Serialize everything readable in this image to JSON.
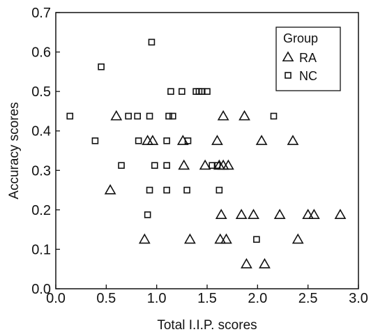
{
  "chart_data": {
    "type": "scatter",
    "xlabel": "Total I.I.P. scores",
    "ylabel": "Accuracy scores",
    "xlim": [
      0.0,
      3.0
    ],
    "ylim": [
      0.0,
      0.7
    ],
    "xticks": [
      "0.0",
      "0.5",
      "1.0",
      "1.5",
      "2.0",
      "2.5",
      "3.0"
    ],
    "yticks": [
      "0.0",
      "0.1",
      "0.2",
      "0.3",
      "0.4",
      "0.5",
      "0.6",
      "0.7"
    ],
    "grid": false,
    "legend": {
      "title": "Group",
      "placement": "top-right"
    },
    "series": [
      {
        "name": "RA",
        "marker": "triangle",
        "points": [
          [
            0.54,
            0.25
          ],
          [
            0.6,
            0.4375
          ],
          [
            0.88,
            0.125
          ],
          [
            0.91,
            0.375
          ],
          [
            0.96,
            0.375
          ],
          [
            1.26,
            0.375
          ],
          [
            1.27,
            0.3125
          ],
          [
            1.33,
            0.125
          ],
          [
            1.48,
            0.3125
          ],
          [
            1.6,
            0.375
          ],
          [
            1.62,
            0.3125
          ],
          [
            1.63,
            0.125
          ],
          [
            1.64,
            0.1875
          ],
          [
            1.66,
            0.4375
          ],
          [
            1.66,
            0.3125
          ],
          [
            1.69,
            0.125
          ],
          [
            1.71,
            0.3125
          ],
          [
            1.84,
            0.1875
          ],
          [
            1.87,
            0.4375
          ],
          [
            1.89,
            0.0625
          ],
          [
            1.96,
            0.1875
          ],
          [
            2.04,
            0.375
          ],
          [
            2.07,
            0.0625
          ],
          [
            2.22,
            0.1875
          ],
          [
            2.35,
            0.375
          ],
          [
            2.4,
            0.125
          ],
          [
            2.5,
            0.1875
          ],
          [
            2.56,
            0.1875
          ],
          [
            2.82,
            0.1875
          ]
        ]
      },
      {
        "name": "NC",
        "marker": "square",
        "points": [
          [
            0.14,
            0.4375
          ],
          [
            0.39,
            0.375
          ],
          [
            0.45,
            0.5625
          ],
          [
            0.65,
            0.3125
          ],
          [
            0.72,
            0.4375
          ],
          [
            0.81,
            0.4375
          ],
          [
            0.82,
            0.375
          ],
          [
            0.91,
            0.1875
          ],
          [
            0.93,
            0.4375
          ],
          [
            0.93,
            0.25
          ],
          [
            0.95,
            0.625
          ],
          [
            0.98,
            0.3125
          ],
          [
            1.1,
            0.375
          ],
          [
            1.1,
            0.3125
          ],
          [
            1.1,
            0.25
          ],
          [
            1.12,
            0.4375
          ],
          [
            1.14,
            0.5
          ],
          [
            1.16,
            0.4375
          ],
          [
            1.25,
            0.5
          ],
          [
            1.3,
            0.25
          ],
          [
            1.31,
            0.375
          ],
          [
            1.39,
            0.5
          ],
          [
            1.42,
            0.5
          ],
          [
            1.45,
            0.5
          ],
          [
            1.5,
            0.5
          ],
          [
            1.55,
            0.3125
          ],
          [
            1.6,
            0.3125
          ],
          [
            1.62,
            0.25
          ],
          [
            1.99,
            0.125
          ],
          [
            2.16,
            0.4375
          ]
        ]
      }
    ]
  }
}
